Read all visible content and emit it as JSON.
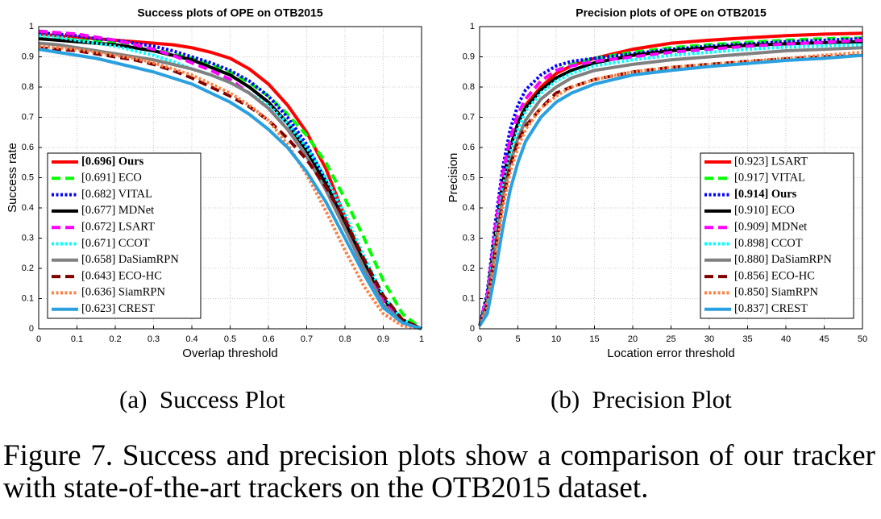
{
  "chart_data": [
    {
      "type": "line",
      "title": "Success plots of OPE on OTB2015",
      "xlabel": "Overlap threshold",
      "ylabel": "Success rate",
      "caption": "(a)  Success Plot",
      "x": [
        0,
        0.05,
        0.1,
        0.15,
        0.2,
        0.25,
        0.3,
        0.35,
        0.4,
        0.45,
        0.5,
        0.55,
        0.6,
        0.65,
        0.7,
        0.75,
        0.8,
        0.85,
        0.9,
        0.95,
        1
      ],
      "xlim": [
        0,
        1
      ],
      "ylim": [
        0,
        1
      ],
      "xticks": [
        0,
        0.1,
        0.2,
        0.3,
        0.4,
        0.5,
        0.6,
        0.7,
        0.8,
        0.9,
        1
      ],
      "yticks": [
        0,
        0.1,
        0.2,
        0.3,
        0.4,
        0.5,
        0.6,
        0.7,
        0.8,
        0.9,
        1
      ],
      "grid": true,
      "legend": "lower left",
      "series": [
        {
          "name": "[0.696] Ours",
          "bold": true,
          "color": "#ff0000",
          "dash": "solid",
          "values": [
            0.975,
            0.97,
            0.965,
            0.96,
            0.955,
            0.95,
            0.945,
            0.94,
            0.93,
            0.915,
            0.895,
            0.86,
            0.81,
            0.74,
            0.65,
            0.53,
            0.37,
            0.22,
            0.1,
            0.03,
            0
          ]
        },
        {
          "name": "[0.691] ECO",
          "color": "#00ff00",
          "dash": "dashed",
          "values": [
            0.96,
            0.958,
            0.955,
            0.95,
            0.945,
            0.935,
            0.925,
            0.91,
            0.895,
            0.875,
            0.85,
            0.815,
            0.77,
            0.71,
            0.64,
            0.55,
            0.43,
            0.3,
            0.16,
            0.05,
            0
          ]
        },
        {
          "name": "[0.682] VITAL",
          "color": "#0000ff",
          "dash": "dotted",
          "values": [
            0.98,
            0.975,
            0.97,
            0.96,
            0.955,
            0.945,
            0.935,
            0.92,
            0.9,
            0.88,
            0.855,
            0.82,
            0.77,
            0.7,
            0.61,
            0.49,
            0.35,
            0.21,
            0.09,
            0.02,
            0
          ]
        },
        {
          "name": "[0.677] MDNet",
          "color": "#000000",
          "dash": "solid",
          "values": [
            0.96,
            0.955,
            0.95,
            0.945,
            0.94,
            0.93,
            0.92,
            0.905,
            0.89,
            0.865,
            0.84,
            0.8,
            0.75,
            0.68,
            0.59,
            0.48,
            0.35,
            0.22,
            0.1,
            0.03,
            0
          ]
        },
        {
          "name": "[0.672] LSART",
          "color": "#ff00ff",
          "dash": "dashed",
          "values": [
            0.985,
            0.98,
            0.975,
            0.965,
            0.955,
            0.94,
            0.925,
            0.905,
            0.88,
            0.855,
            0.825,
            0.78,
            0.73,
            0.66,
            0.57,
            0.46,
            0.33,
            0.2,
            0.09,
            0.02,
            0
          ]
        },
        {
          "name": "[0.671] CCOT",
          "color": "#00ffff",
          "dash": "dotted",
          "values": [
            0.97,
            0.965,
            0.955,
            0.945,
            0.935,
            0.92,
            0.905,
            0.885,
            0.86,
            0.84,
            0.815,
            0.78,
            0.74,
            0.68,
            0.6,
            0.5,
            0.38,
            0.24,
            0.11,
            0.03,
            0
          ]
        },
        {
          "name": "[0.658] DaSiamRPN",
          "color": "#808080",
          "dash": "solid",
          "values": [
            0.945,
            0.94,
            0.93,
            0.92,
            0.91,
            0.9,
            0.89,
            0.875,
            0.86,
            0.84,
            0.815,
            0.78,
            0.73,
            0.66,
            0.57,
            0.46,
            0.33,
            0.2,
            0.08,
            0.02,
            0
          ]
        },
        {
          "name": "[0.643] ECO-HC",
          "color": "#800000",
          "dash": "dashed",
          "values": [
            0.93,
            0.925,
            0.92,
            0.91,
            0.9,
            0.89,
            0.875,
            0.855,
            0.83,
            0.8,
            0.77,
            0.735,
            0.69,
            0.63,
            0.56,
            0.47,
            0.36,
            0.23,
            0.11,
            0.03,
            0
          ]
        },
        {
          "name": "[0.636] SiamRPN",
          "color": "#ff8040",
          "dash": "dotted",
          "values": [
            0.935,
            0.93,
            0.925,
            0.915,
            0.905,
            0.895,
            0.88,
            0.86,
            0.84,
            0.81,
            0.78,
            0.74,
            0.69,
            0.61,
            0.51,
            0.39,
            0.26,
            0.14,
            0.05,
            0.01,
            0
          ]
        },
        {
          "name": "[0.623] CREST",
          "color": "#2aa0e0",
          "dash": "solid",
          "values": [
            0.925,
            0.915,
            0.905,
            0.895,
            0.88,
            0.865,
            0.85,
            0.83,
            0.81,
            0.78,
            0.75,
            0.71,
            0.66,
            0.6,
            0.52,
            0.42,
            0.3,
            0.18,
            0.07,
            0.02,
            0
          ]
        }
      ]
    },
    {
      "type": "line",
      "title": "Precision plots of OPE on OTB2015",
      "xlabel": "Location error threshold",
      "ylabel": "Precision",
      "caption": "(b)  Precision Plot",
      "x": [
        0,
        1,
        2,
        3,
        4,
        5,
        6,
        8,
        10,
        12,
        15,
        20,
        25,
        30,
        35,
        40,
        45,
        50
      ],
      "xlim": [
        0,
        50
      ],
      "ylim": [
        0,
        1
      ],
      "xticks": [
        0,
        5,
        10,
        15,
        20,
        25,
        30,
        35,
        40,
        45,
        50
      ],
      "yticks": [
        0,
        0.1,
        0.2,
        0.3,
        0.4,
        0.5,
        0.6,
        0.7,
        0.8,
        0.9,
        1
      ],
      "grid": true,
      "legend": "lower right",
      "series": [
        {
          "name": "[0.923] LSART",
          "color": "#ff0000",
          "dash": "solid",
          "values": [
            0.01,
            0.1,
            0.3,
            0.48,
            0.6,
            0.68,
            0.74,
            0.8,
            0.845,
            0.87,
            0.895,
            0.925,
            0.945,
            0.955,
            0.963,
            0.97,
            0.975,
            0.978
          ]
        },
        {
          "name": "[0.917] VITAL",
          "color": "#00ff00",
          "dash": "dashed",
          "values": [
            0.01,
            0.1,
            0.3,
            0.5,
            0.62,
            0.7,
            0.76,
            0.82,
            0.855,
            0.875,
            0.895,
            0.915,
            0.93,
            0.94,
            0.948,
            0.955,
            0.96,
            0.962
          ]
        },
        {
          "name": "[0.914] Ours",
          "bold": true,
          "color": "#0000ff",
          "dash": "dotted",
          "values": [
            0.01,
            0.12,
            0.34,
            0.53,
            0.66,
            0.74,
            0.79,
            0.84,
            0.87,
            0.885,
            0.895,
            0.91,
            0.925,
            0.935,
            0.943,
            0.95,
            0.955,
            0.96
          ]
        },
        {
          "name": "[0.910] ECO",
          "color": "#000000",
          "dash": "solid",
          "values": [
            0.01,
            0.1,
            0.3,
            0.48,
            0.6,
            0.68,
            0.73,
            0.79,
            0.83,
            0.855,
            0.88,
            0.905,
            0.92,
            0.93,
            0.938,
            0.943,
            0.947,
            0.95
          ]
        },
        {
          "name": "[0.909] MDNet",
          "color": "#ff00ff",
          "dash": "dashed",
          "values": [
            0.01,
            0.11,
            0.32,
            0.51,
            0.63,
            0.71,
            0.76,
            0.82,
            0.855,
            0.87,
            0.885,
            0.9,
            0.915,
            0.925,
            0.935,
            0.942,
            0.948,
            0.955
          ]
        },
        {
          "name": "[0.898] CCOT",
          "color": "#00ffff",
          "dash": "dotted",
          "values": [
            0.01,
            0.09,
            0.28,
            0.46,
            0.58,
            0.66,
            0.72,
            0.78,
            0.82,
            0.845,
            0.87,
            0.89,
            0.905,
            0.915,
            0.925,
            0.932,
            0.937,
            0.94
          ]
        },
        {
          "name": "[0.880] DaSiamRPN",
          "color": "#808080",
          "dash": "solid",
          "values": [
            0.01,
            0.08,
            0.26,
            0.43,
            0.55,
            0.63,
            0.69,
            0.76,
            0.8,
            0.83,
            0.855,
            0.875,
            0.89,
            0.9,
            0.91,
            0.92,
            0.925,
            0.93
          ]
        },
        {
          "name": "[0.856] ECO-HC",
          "color": "#800000",
          "dash": "dashed",
          "values": [
            0.01,
            0.08,
            0.25,
            0.42,
            0.54,
            0.62,
            0.67,
            0.73,
            0.78,
            0.8,
            0.825,
            0.85,
            0.865,
            0.875,
            0.885,
            0.893,
            0.9,
            0.905
          ]
        },
        {
          "name": "[0.850] SiamRPN",
          "color": "#ff8040",
          "dash": "dotted",
          "values": [
            0.01,
            0.07,
            0.23,
            0.4,
            0.52,
            0.6,
            0.66,
            0.73,
            0.77,
            0.8,
            0.825,
            0.85,
            0.865,
            0.875,
            0.885,
            0.895,
            0.905,
            0.915
          ]
        },
        {
          "name": "[0.837] CREST",
          "color": "#2aa0e0",
          "dash": "solid",
          "values": [
            0.01,
            0.05,
            0.18,
            0.33,
            0.46,
            0.55,
            0.62,
            0.7,
            0.75,
            0.78,
            0.81,
            0.84,
            0.855,
            0.868,
            0.878,
            0.888,
            0.895,
            0.905
          ]
        }
      ]
    }
  ],
  "figure_caption": "Figure 7. Success and precision plots show a comparison of our tracker with state-of-the-art trackers on the OTB2015 dataset."
}
